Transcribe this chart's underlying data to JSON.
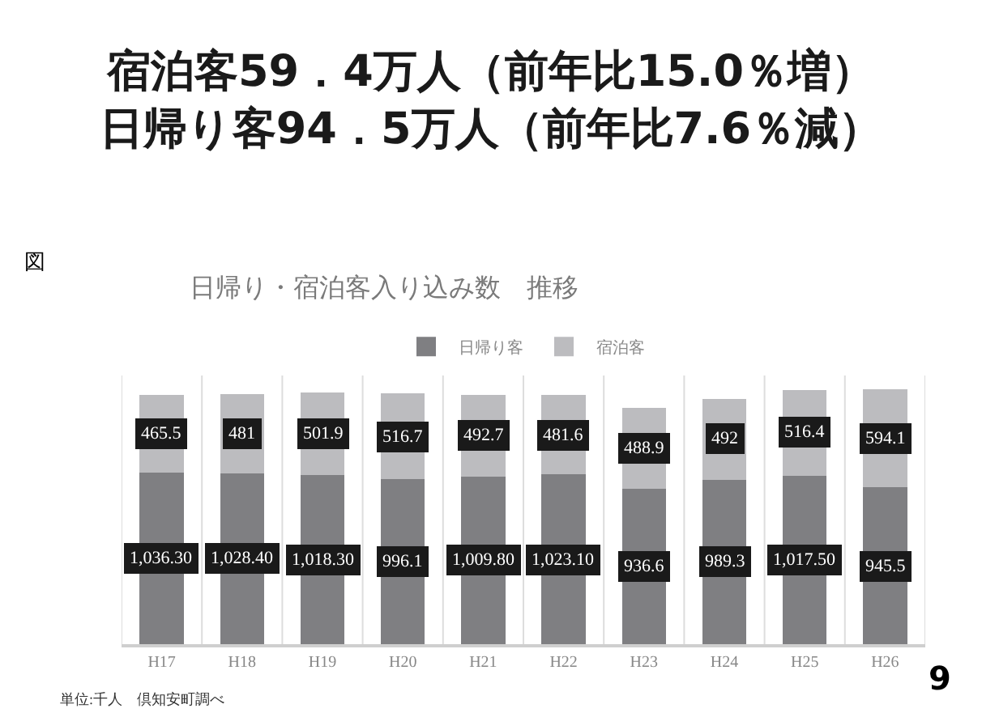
{
  "chart_data": {
    "type": "bar",
    "stacked": true,
    "title": "宿泊客59．4万人（前年比15.0％増）日帰り客94．5万人（前年比7.6％減）",
    "subtitle": "日帰り・宿泊客入り込み数　推移",
    "categories": [
      "H17",
      "H18",
      "H19",
      "H20",
      "H21",
      "H22",
      "H23",
      "H24",
      "H25",
      "H26"
    ],
    "series": [
      {
        "name": "日帰り客",
        "color": "#7f7f82",
        "values": [
          1036.3,
          1028.4,
          1018.3,
          996.1,
          1009.8,
          1023.1,
          936.6,
          989.3,
          1017.5,
          945.5
        ],
        "value_labels": [
          "1,036.30",
          "1,028.40",
          "1,018.30",
          "996.1",
          "1,009.80",
          "1,023.10",
          "936.6",
          "989.3",
          "1,017.50",
          "945.5"
        ]
      },
      {
        "name": "宿泊客",
        "color": "#bcbcbf",
        "values": [
          465.5,
          481,
          501.9,
          516.7,
          492.7,
          481.6,
          488.9,
          492,
          516.4,
          594.1
        ],
        "value_labels": [
          "465.5",
          "481",
          "501.9",
          "516.7",
          "492.7",
          "481.6",
          "488.9",
          "492",
          "516.4",
          "594.1"
        ]
      }
    ],
    "grid": "x",
    "legend": "top",
    "annotations": [
      "図",
      "9",
      "単位:千人　倶知安町調べ"
    ]
  }
}
